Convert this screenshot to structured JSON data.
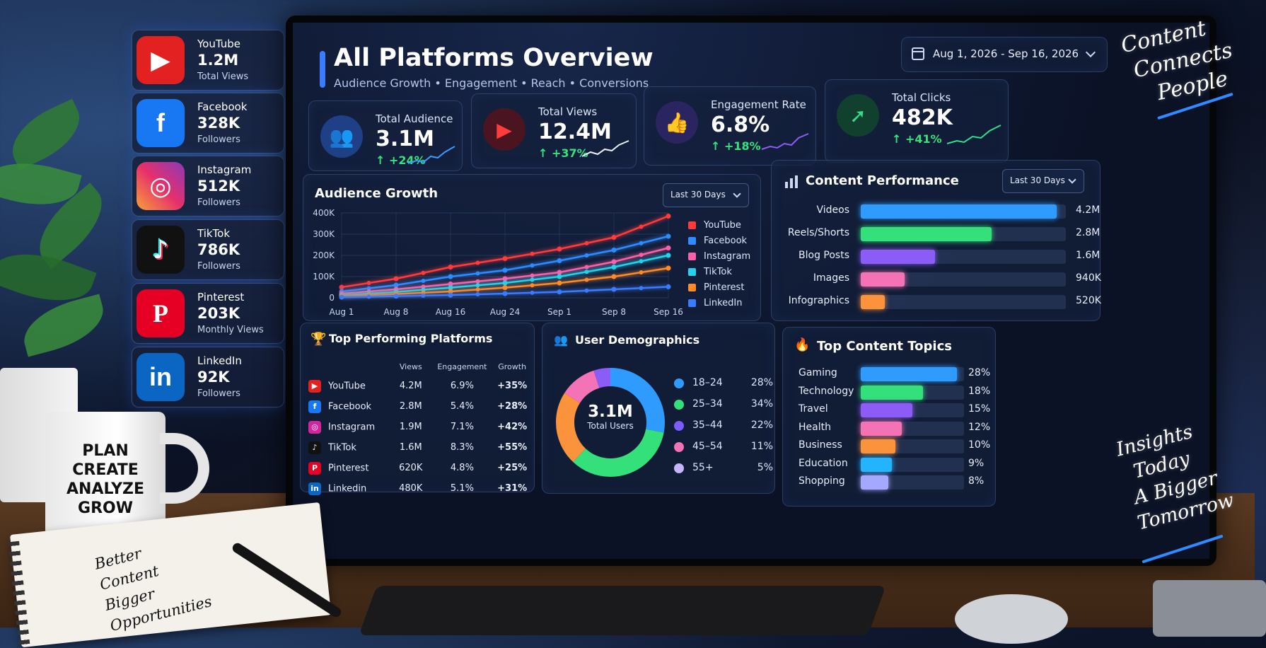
{
  "social_cards": [
    {
      "name": "YouTube",
      "value": "1.2M",
      "sub": "Total Views",
      "color": "#e42121",
      "icon": "youtube-icon"
    },
    {
      "name": "Facebook",
      "value": "328K",
      "sub": "Followers",
      "color": "#1877f2",
      "icon": "facebook-icon"
    },
    {
      "name": "Instagram",
      "value": "512K",
      "sub": "Followers",
      "color": "#d6249f",
      "icon": "instagram-icon"
    },
    {
      "name": "TikTok",
      "value": "786K",
      "sub": "Followers",
      "color": "#111111",
      "icon": "tiktok-icon"
    },
    {
      "name": "Pinterest",
      "value": "203K",
      "sub": "Monthly Views",
      "color": "#e60023",
      "icon": "pinterest-icon"
    },
    {
      "name": "LinkedIn",
      "value": "92K",
      "sub": "Followers",
      "color": "#0a66c2",
      "icon": "linkedin-icon"
    }
  ],
  "dashboard": {
    "title": "All Platforms Overview",
    "subtitle": "Audience Growth • Engagement • Reach • Conversions",
    "date_range": "Aug 1, 2026 - Sep 16, 2026"
  },
  "kpis": [
    {
      "label": "Total Audience",
      "value": "3.1M",
      "delta": "↑ +24%",
      "icon": "users-icon",
      "color": "#3b7cff"
    },
    {
      "label": "Total Views",
      "value": "12.4M",
      "delta": "↑ +37%",
      "icon": "play-icon",
      "color": "#e42121"
    },
    {
      "label": "Engagement Rate",
      "value": "6.8%",
      "delta": "↑ +18%",
      "icon": "thumbs-up-icon",
      "color": "#7a5cff"
    },
    {
      "label": "Total Clicks",
      "value": "482K",
      "delta": "↑ +41%",
      "icon": "cursor-icon",
      "color": "#2ee08a"
    }
  ],
  "audience_growth": {
    "title": "Audience Growth",
    "dropdown": "Last 30 Days"
  },
  "chart_data": {
    "type": "line",
    "title": "Audience Growth",
    "x": [
      "Aug 1",
      "Aug 8",
      "Aug 16",
      "Aug 24",
      "Sep 1",
      "Sep 8",
      "Sep 16"
    ],
    "ylim": [
      0,
      400000
    ],
    "yticks": [
      "0",
      "100K",
      "200K",
      "300K",
      "400K"
    ],
    "grid": true,
    "legend": "right",
    "series": [
      {
        "name": "YouTube",
        "color": "#ff3b3b",
        "values": [
          50000,
          90000,
          145000,
          185000,
          230000,
          285000,
          385000
        ]
      },
      {
        "name": "Facebook",
        "color": "#2f8bff",
        "values": [
          30000,
          60000,
          100000,
          130000,
          175000,
          225000,
          290000
        ]
      },
      {
        "name": "Instagram",
        "color": "#ff5fa8",
        "values": [
          20000,
          40000,
          65000,
          90000,
          120000,
          170000,
          235000
        ]
      },
      {
        "name": "TikTok",
        "color": "#22d3ee",
        "values": [
          12000,
          28000,
          48000,
          70000,
          100000,
          145000,
          200000
        ]
      },
      {
        "name": "Pinterest",
        "color": "#ff8a2a",
        "values": [
          8000,
          18000,
          30000,
          48000,
          70000,
          100000,
          140000
        ]
      },
      {
        "name": "LinkedIn",
        "color": "#3b7cff",
        "values": [
          3000,
          8000,
          13000,
          20000,
          28000,
          40000,
          52000
        ]
      }
    ]
  },
  "content_performance": {
    "title": "Content Performance",
    "dropdown": "Last 30 Days",
    "max": 4.4,
    "rows": [
      {
        "label": "Videos",
        "value": "4.2M",
        "amount": 4.2,
        "color": "#2f9bff"
      },
      {
        "label": "Reels/Shorts",
        "value": "2.8M",
        "amount": 2.8,
        "color": "#34e07a"
      },
      {
        "label": "Blog Posts",
        "value": "1.6M",
        "amount": 1.6,
        "color": "#8b5cf6"
      },
      {
        "label": "Images",
        "value": "940K",
        "amount": 0.94,
        "color": "#f472b6"
      },
      {
        "label": "Infographics",
        "value": "520K",
        "amount": 0.52,
        "color": "#fb923c"
      }
    ]
  },
  "top_platforms": {
    "title": "Top Performing Platforms",
    "columns": [
      "Views",
      "Engagement",
      "Growth"
    ],
    "rows": [
      {
        "name": "YouTube",
        "views": "4.2M",
        "engagement": "6.9%",
        "growth": "+35%",
        "color": "#e42121",
        "glyph": "▶"
      },
      {
        "name": "Facebook",
        "views": "2.8M",
        "engagement": "5.4%",
        "growth": "+28%",
        "color": "#1877f2",
        "glyph": "f"
      },
      {
        "name": "Instagram",
        "views": "1.9M",
        "engagement": "7.1%",
        "growth": "+42%",
        "color": "#d6249f",
        "glyph": "◎"
      },
      {
        "name": "TikTok",
        "views": "1.6M",
        "engagement": "8.3%",
        "growth": "+55%",
        "color": "#111111",
        "glyph": "♪"
      },
      {
        "name": "Pinterest",
        "views": "620K",
        "engagement": "4.8%",
        "growth": "+25%",
        "color": "#e60023",
        "glyph": "P"
      },
      {
        "name": "Linkedin",
        "views": "480K",
        "engagement": "5.1%",
        "growth": "+31%",
        "color": "#0a66c2",
        "glyph": "in"
      }
    ]
  },
  "demographics": {
    "title": "User Demographics",
    "center_value": "3.1M",
    "center_label": "Total Users",
    "segments": [
      {
        "label": "18–24",
        "pct": "28%",
        "value": 28,
        "color": "#2f9bff"
      },
      {
        "label": "25–34",
        "pct": "34%",
        "value": 34,
        "color": "#34e07a"
      },
      {
        "label": "35–44",
        "pct": "22%",
        "value": 22,
        "color": "#fb923c"
      },
      {
        "label": "45–54",
        "pct": "11%",
        "value": 11,
        "color": "#f472b6"
      },
      {
        "label": "55+",
        "pct": "5%",
        "value": 5,
        "color": "#8b5cf6"
      }
    ],
    "legend_colors": [
      "#2f9bff",
      "#34e07a",
      "#7a5cff",
      "#f472b6",
      "#c4b5fd"
    ]
  },
  "top_topics": {
    "title": "Top Content Topics",
    "max": 30,
    "rows": [
      {
        "label": "Gaming",
        "pct": "28%",
        "value": 28,
        "color": "#2f9bff"
      },
      {
        "label": "Technology",
        "pct": "18%",
        "value": 18,
        "color": "#34e07a"
      },
      {
        "label": "Travel",
        "pct": "15%",
        "value": 15,
        "color": "#8b5cf6"
      },
      {
        "label": "Health",
        "pct": "12%",
        "value": 12,
        "color": "#f472b6"
      },
      {
        "label": "Business",
        "pct": "10%",
        "value": 10,
        "color": "#fb923c"
      },
      {
        "label": "Education",
        "pct": "9%",
        "value": 9,
        "color": "#22b4ff"
      },
      {
        "label": "Shopping",
        "pct": "8%",
        "value": 8,
        "color": "#a5a8ff"
      }
    ]
  },
  "decor": {
    "mug_lines": [
      "PLAN",
      "CREATE",
      "ANALYZE",
      "GROW"
    ],
    "notebook_lines": [
      "Better",
      "Content",
      "Bigger",
      "Opportunities"
    ],
    "handwriting_top": [
      "Content",
      "Connects",
      "People"
    ],
    "handwriting_bottom": [
      "Insights",
      "Today",
      "A Bigger",
      "Tomorrow"
    ]
  }
}
